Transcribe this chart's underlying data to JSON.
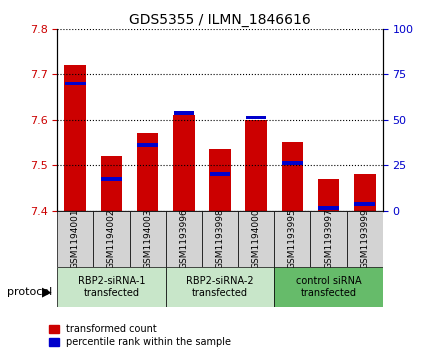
{
  "title": "GDS5355 / ILMN_1846616",
  "samples": [
    "GSM1194001",
    "GSM1194002",
    "GSM1194003",
    "GSM1193996",
    "GSM1193998",
    "GSM1194000",
    "GSM1193995",
    "GSM1193997",
    "GSM1193999"
  ],
  "red_values": [
    7.72,
    7.52,
    7.57,
    7.61,
    7.535,
    7.6,
    7.55,
    7.47,
    7.48
  ],
  "blue_values": [
    7.68,
    7.47,
    7.545,
    7.615,
    7.48,
    7.605,
    7.505,
    7.405,
    7.415
  ],
  "ymin": 7.4,
  "ymax": 7.8,
  "yticks": [
    7.4,
    7.5,
    7.6,
    7.7,
    7.8
  ],
  "y2ticks": [
    0,
    25,
    50,
    75,
    100
  ],
  "red_color": "#cc0000",
  "blue_color": "#0000cc",
  "bar_width": 0.6,
  "groups": [
    {
      "label": "RBP2-siRNA-1\ntransfected",
      "start": 0,
      "end": 3
    },
    {
      "label": "RBP2-siRNA-2\ntransfected",
      "start": 3,
      "end": 6
    },
    {
      "label": "control siRNA\ntransfected",
      "start": 6,
      "end": 9
    }
  ],
  "group_colors": [
    "#c8e6c9",
    "#c8e6c9",
    "#66bb6a"
  ],
  "sample_bg_color": "#d3d3d3",
  "protocol_label": "protocol",
  "legend_red": "transformed count",
  "legend_blue": "percentile rank within the sample"
}
